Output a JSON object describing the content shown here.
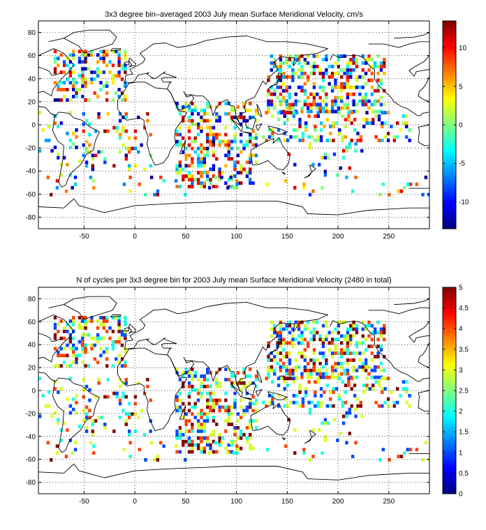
{
  "chart_data": [
    {
      "type": "heatmap",
      "title": "3x3 degree bin–averaged 2003 July mean Surface Meridional Velocity, cm/s",
      "xlim": [
        -95,
        290
      ],
      "ylim": [
        -90,
        90
      ],
      "xticks": [
        -50,
        0,
        50,
        100,
        150,
        200,
        250
      ],
      "yticks": [
        -80,
        -60,
        -40,
        -20,
        0,
        20,
        40,
        60,
        80
      ],
      "grid": true,
      "bin_size_deg": 3,
      "colorbar": {
        "range": [
          -13.5,
          13.5
        ],
        "ticks": [
          -10,
          -5,
          0,
          5,
          10
        ],
        "colormap": "jet",
        "position": "right"
      },
      "regions": [
        {
          "lon": [
            -80,
            -10
          ],
          "lat": [
            20,
            65
          ],
          "density": 0.45
        },
        {
          "lon": [
            -95,
            -55
          ],
          "lat": [
            -45,
            10
          ],
          "density": 0.12
        },
        {
          "lon": [
            -55,
            15
          ],
          "lat": [
            -40,
            10
          ],
          "density": 0.18
        },
        {
          "lon": [
            40,
            120
          ],
          "lat": [
            -55,
            20
          ],
          "density": 0.38
        },
        {
          "lon": [
            130,
            245
          ],
          "lat": [
            10,
            60
          ],
          "density": 0.45
        },
        {
          "lon": [
            125,
            270
          ],
          "lat": [
            -15,
            10
          ],
          "density": 0.25
        },
        {
          "lon": [
            150,
            230
          ],
          "lat": [
            -45,
            -15
          ],
          "density": 0.1
        },
        {
          "lon": [
            -90,
            290
          ],
          "lat": [
            -62,
            -46
          ],
          "density": 0.07
        }
      ],
      "value_range": [
        -13.5,
        13.5
      ]
    },
    {
      "type": "heatmap",
      "title": "N of cycles per 3x3 degree bin for 2003 July mean Surface Meridional Velocity (2480 in total)",
      "xlim": [
        -95,
        290
      ],
      "ylim": [
        -90,
        90
      ],
      "xticks": [
        -50,
        0,
        50,
        100,
        150,
        200,
        250
      ],
      "yticks": [
        -80,
        -60,
        -40,
        -20,
        0,
        20,
        40,
        60,
        80
      ],
      "grid": true,
      "bin_size_deg": 3,
      "total_cycles": 2480,
      "colorbar": {
        "range": [
          0,
          5
        ],
        "ticks": [
          0,
          0.5,
          1,
          1.5,
          2,
          2.5,
          3,
          3.5,
          4,
          4.5,
          5
        ],
        "colormap": "jet",
        "position": "right"
      },
      "regions": [
        {
          "lon": [
            -80,
            -10
          ],
          "lat": [
            20,
            65
          ],
          "density": 0.45
        },
        {
          "lon": [
            -95,
            -55
          ],
          "lat": [
            -45,
            10
          ],
          "density": 0.12
        },
        {
          "lon": [
            -55,
            15
          ],
          "lat": [
            -40,
            10
          ],
          "density": 0.18
        },
        {
          "lon": [
            40,
            120
          ],
          "lat": [
            -55,
            20
          ],
          "density": 0.38
        },
        {
          "lon": [
            130,
            245
          ],
          "lat": [
            10,
            60
          ],
          "density": 0.45
        },
        {
          "lon": [
            125,
            270
          ],
          "lat": [
            -15,
            10
          ],
          "density": 0.25
        },
        {
          "lon": [
            150,
            230
          ],
          "lat": [
            -45,
            -15
          ],
          "density": 0.1
        },
        {
          "lon": [
            -90,
            290
          ],
          "lat": [
            -62,
            -46
          ],
          "density": 0.07
        }
      ],
      "value_range": [
        1,
        5
      ]
    }
  ],
  "coastlines": [
    [
      [
        -85,
        72
      ],
      [
        -70,
        75
      ],
      [
        -60,
        80
      ],
      [
        -45,
        82
      ],
      [
        -25,
        82
      ],
      [
        -18,
        76
      ],
      [
        -22,
        70
      ],
      [
        -40,
        65
      ],
      [
        -50,
        62
      ],
      [
        -55,
        68
      ],
      [
        -70,
        75
      ]
    ],
    [
      [
        -95,
        60
      ],
      [
        -80,
        66
      ],
      [
        -70,
        62
      ],
      [
        -65,
        57
      ],
      [
        -60,
        52
      ],
      [
        -66,
        45
      ],
      [
        -70,
        42
      ],
      [
        -76,
        36
      ],
      [
        -81,
        30
      ],
      [
        -82,
        25
      ],
      [
        -90,
        29
      ],
      [
        -95,
        28
      ]
    ],
    [
      [
        -95,
        16
      ],
      [
        -88,
        15
      ],
      [
        -83,
        10
      ],
      [
        -78,
        8
      ],
      [
        -75,
        11
      ],
      [
        -65,
        10
      ],
      [
        -60,
        6
      ],
      [
        -52,
        4
      ],
      [
        -44,
        -2
      ],
      [
        -35,
        -6
      ],
      [
        -39,
        -14
      ],
      [
        -41,
        -22
      ],
      [
        -48,
        -26
      ],
      [
        -53,
        -34
      ],
      [
        -58,
        -38
      ],
      [
        -63,
        -42
      ],
      [
        -66,
        -47
      ],
      [
        -68,
        -52
      ],
      [
        -72,
        -54
      ],
      [
        -75,
        -50
      ],
      [
        -73,
        -40
      ],
      [
        -71,
        -30
      ],
      [
        -70,
        -18
      ],
      [
        -76,
        -14
      ],
      [
        -81,
        -5
      ],
      [
        -80,
        1
      ],
      [
        -79,
        8
      ],
      [
        -83,
        10
      ],
      [
        -88,
        15
      ],
      [
        -95,
        16
      ]
    ],
    [
      [
        -17,
        21
      ],
      [
        -10,
        30
      ],
      [
        -6,
        36
      ],
      [
        3,
        37
      ],
      [
        10,
        37
      ],
      [
        20,
        32
      ],
      [
        32,
        31
      ],
      [
        35,
        28
      ],
      [
        43,
        12
      ],
      [
        51,
        11
      ],
      [
        51,
        10
      ],
      [
        45,
        2
      ],
      [
        40,
        -4
      ],
      [
        39,
        -10
      ],
      [
        40,
        -16
      ],
      [
        35,
        -22
      ],
      [
        33,
        -27
      ],
      [
        28,
        -33
      ],
      [
        20,
        -35
      ],
      [
        18,
        -32
      ],
      [
        15,
        -26
      ],
      [
        12,
        -17
      ],
      [
        13,
        -10
      ],
      [
        9,
        -1
      ],
      [
        9,
        4
      ],
      [
        5,
        6
      ],
      [
        -8,
        4
      ],
      [
        -13,
        8
      ],
      [
        -17,
        14
      ],
      [
        -17,
        21
      ]
    ],
    [
      [
        44,
        -25
      ],
      [
        49,
        -15
      ],
      [
        50,
        -13
      ],
      [
        48,
        -25
      ],
      [
        44,
        -25
      ]
    ],
    [
      [
        -10,
        36
      ],
      [
        -9,
        43
      ],
      [
        -2,
        44
      ],
      [
        -5,
        48
      ],
      [
        2,
        51
      ],
      [
        8,
        54
      ],
      [
        10,
        57
      ],
      [
        5,
        62
      ],
      [
        12,
        66
      ],
      [
        18,
        70
      ],
      [
        30,
        71
      ],
      [
        42,
        67
      ],
      [
        50,
        68
      ],
      [
        60,
        70
      ],
      [
        70,
        73
      ],
      [
        90,
        76
      ],
      [
        110,
        77
      ],
      [
        130,
        72
      ],
      [
        150,
        72
      ],
      [
        170,
        70
      ],
      [
        190,
        66
      ],
      [
        180,
        62
      ],
      [
        163,
        60
      ],
      [
        156,
        51
      ],
      [
        157,
        58
      ],
      [
        143,
        59
      ],
      [
        137,
        54
      ],
      [
        141,
        48
      ],
      [
        133,
        42
      ],
      [
        129,
        35
      ],
      [
        126,
        38
      ],
      [
        122,
        31
      ],
      [
        118,
        24
      ],
      [
        110,
        21
      ],
      [
        108,
        16
      ],
      [
        109,
        11
      ],
      [
        104,
        10
      ],
      [
        101,
        6
      ],
      [
        103,
        1
      ],
      [
        100,
        6
      ],
      [
        98,
        16
      ],
      [
        94,
        17
      ],
      [
        91,
        22
      ],
      [
        86,
        20
      ],
      [
        80,
        15
      ],
      [
        77,
        8
      ],
      [
        73,
        20
      ],
      [
        67,
        25
      ],
      [
        60,
        25
      ],
      [
        57,
        26
      ],
      [
        51,
        24
      ],
      [
        48,
        29
      ],
      [
        50,
        26
      ],
      [
        56,
        26
      ],
      [
        58,
        23
      ],
      [
        52,
        16
      ],
      [
        45,
        13
      ],
      [
        43,
        13
      ],
      [
        35,
        28
      ],
      [
        32,
        31
      ],
      [
        34,
        36
      ],
      [
        36,
        37
      ],
      [
        28,
        37
      ],
      [
        26,
        40
      ],
      [
        29,
        41
      ],
      [
        41,
        41
      ],
      [
        28,
        45
      ],
      [
        30,
        46
      ],
      [
        20,
        40
      ],
      [
        16,
        41
      ],
      [
        18,
        40
      ],
      [
        12,
        44
      ],
      [
        14,
        45
      ],
      [
        8,
        44
      ],
      [
        3,
        43
      ],
      [
        -1,
        37
      ],
      [
        -10,
        36
      ]
    ],
    [
      [
        -6,
        50
      ],
      [
        -3,
        51
      ],
      [
        0,
        51
      ],
      [
        1,
        53
      ],
      [
        -3,
        56
      ],
      [
        -5,
        58
      ],
      [
        -6,
        56
      ],
      [
        -5,
        54
      ],
      [
        -3,
        52
      ],
      [
        -6,
        50
      ]
    ],
    [
      [
        -10,
        52
      ],
      [
        -6,
        52
      ],
      [
        -6,
        55
      ],
      [
        -10,
        54
      ],
      [
        -10,
        52
      ]
    ],
    [
      [
        -24,
        64
      ],
      [
        -14,
        65
      ],
      [
        -14,
        66
      ],
      [
        -22,
        66
      ],
      [
        -24,
        64
      ]
    ],
    [
      [
        131,
        31
      ],
      [
        135,
        34
      ],
      [
        140,
        35
      ],
      [
        142,
        40
      ],
      [
        141,
        45
      ],
      [
        145,
        44
      ],
      [
        142,
        41
      ],
      [
        140,
        37
      ],
      [
        136,
        34
      ],
      [
        131,
        31
      ]
    ],
    [
      [
        95,
        5
      ],
      [
        105,
        -6
      ],
      [
        106,
        -2
      ],
      [
        98,
        3
      ],
      [
        95,
        5
      ]
    ],
    [
      [
        109,
        2
      ],
      [
        117,
        7
      ],
      [
        119,
        5
      ],
      [
        116,
        -4
      ],
      [
        110,
        -2
      ],
      [
        109,
        2
      ]
    ],
    [
      [
        106,
        -6
      ],
      [
        115,
        -8
      ],
      [
        114,
        -7
      ],
      [
        106,
        -6
      ]
    ],
    [
      [
        119,
        -1
      ],
      [
        125,
        1
      ],
      [
        121,
        -5
      ],
      [
        119,
        -1
      ]
    ],
    [
      [
        131,
        -1
      ],
      [
        141,
        -3
      ],
      [
        150,
        -6
      ],
      [
        145,
        -8
      ],
      [
        140,
        -8
      ],
      [
        133,
        -4
      ],
      [
        131,
        -1
      ]
    ],
    [
      [
        114,
        -22
      ],
      [
        122,
        -18
      ],
      [
        130,
        -14
      ],
      [
        137,
        -12
      ],
      [
        136,
        -16
      ],
      [
        142,
        -11
      ],
      [
        146,
        -19
      ],
      [
        153,
        -26
      ],
      [
        151,
        -34
      ],
      [
        146,
        -39
      ],
      [
        140,
        -38
      ],
      [
        136,
        -35
      ],
      [
        131,
        -31
      ],
      [
        123,
        -34
      ],
      [
        116,
        -35
      ],
      [
        115,
        -30
      ],
      [
        114,
        -22
      ]
    ],
    [
      [
        145,
        -41
      ],
      [
        148,
        -42
      ],
      [
        147,
        -43
      ],
      [
        145,
        -41
      ]
    ],
    [
      [
        173,
        -35
      ],
      [
        178,
        -38
      ],
      [
        174,
        -41
      ],
      [
        172,
        -35
      ],
      [
        173,
        -35
      ]
    ],
    [
      [
        174,
        -41
      ],
      [
        172,
        -44
      ],
      [
        167,
        -46
      ],
      [
        171,
        -44
      ],
      [
        174,
        -41
      ]
    ],
    [
      [
        120,
        18
      ],
      [
        123,
        13
      ],
      [
        125,
        7
      ],
      [
        122,
        9
      ],
      [
        120,
        18
      ]
    ],
    [
      [
        -95,
        -71
      ],
      [
        -70,
        -72
      ],
      [
        -60,
        -64
      ],
      [
        -55,
        -70
      ],
      [
        -30,
        -76
      ],
      [
        0,
        -70
      ],
      [
        40,
        -68
      ],
      [
        70,
        -67
      ],
      [
        90,
        -66
      ],
      [
        120,
        -66
      ],
      [
        140,
        -66
      ],
      [
        165,
        -71
      ],
      [
        170,
        -77
      ],
      [
        200,
        -78
      ],
      [
        230,
        -74
      ],
      [
        250,
        -73
      ],
      [
        270,
        -72
      ],
      [
        290,
        -72
      ]
    ],
    [
      [
        192,
        56
      ],
      [
        195,
        61
      ],
      [
        202,
        58
      ],
      [
        210,
        60
      ],
      [
        220,
        60
      ],
      [
        225,
        58
      ],
      [
        232,
        50
      ],
      [
        236,
        48
      ],
      [
        236,
        40
      ],
      [
        240,
        34
      ],
      [
        245,
        30
      ],
      [
        252,
        24
      ],
      [
        255,
        20
      ],
      [
        262,
        16
      ],
      [
        268,
        14
      ],
      [
        275,
        10
      ],
      [
        278,
        8
      ],
      [
        281,
        8
      ],
      [
        283,
        10
      ],
      [
        290,
        11
      ]
    ],
    [
      [
        290,
        0
      ],
      [
        279,
        -2
      ],
      [
        280,
        -5
      ],
      [
        279,
        -15
      ],
      [
        285,
        -18
      ],
      [
        290,
        -18
      ]
    ],
    [
      [
        290,
        20
      ],
      [
        284,
        22
      ],
      [
        279,
        25
      ],
      [
        280,
        29
      ],
      [
        284,
        32
      ],
      [
        287,
        36
      ],
      [
        290,
        42
      ]
    ],
    [
      [
        290,
        48
      ],
      [
        283,
        47
      ],
      [
        277,
        46
      ],
      [
        275,
        42
      ],
      [
        270,
        47
      ],
      [
        275,
        50
      ],
      [
        285,
        55
      ],
      [
        290,
        60
      ]
    ],
    [
      [
        230,
        70
      ],
      [
        245,
        70
      ],
      [
        260,
        67
      ],
      [
        270,
        70
      ],
      [
        280,
        72
      ],
      [
        290,
        72
      ]
    ],
    [
      [
        255,
        75
      ],
      [
        275,
        76
      ],
      [
        285,
        78
      ],
      [
        290,
        80
      ]
    ],
    [
      [
        -95,
        50
      ],
      [
        -88,
        48
      ],
      [
        -84,
        46
      ],
      [
        -82,
        43
      ],
      [
        -79,
        43
      ],
      [
        -76,
        44
      ],
      [
        -72,
        45
      ]
    ],
    [
      [
        270,
        -55
      ],
      [
        290,
        -55
      ]
    ]
  ]
}
